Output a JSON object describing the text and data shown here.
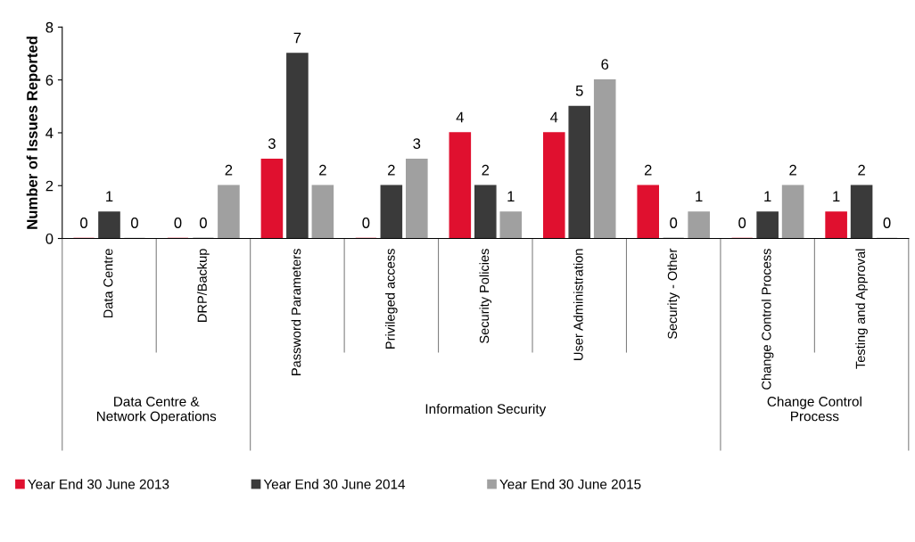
{
  "chart_data": {
    "type": "bar",
    "ylabel": "Number of Issues Reported",
    "categories": [
      "Data Centre",
      "DRP/Backup",
      "Password Parameters",
      "Privileged access",
      "Security Policies",
      "User Administration",
      "Security - Other",
      "Change Control Process",
      "Testing and Approval"
    ],
    "series": [
      {
        "name": "Year End 30 June 2013",
        "color": "#e0102f",
        "values": [
          0,
          0,
          3,
          0,
          4,
          4,
          2,
          0,
          1
        ]
      },
      {
        "name": "Year End 30 June 2014",
        "color": "#3a3a3a",
        "values": [
          1,
          0,
          7,
          2,
          2,
          5,
          0,
          1,
          2
        ]
      },
      {
        "name": "Year End 30 June 2015",
        "color": "#a0a0a0",
        "values": [
          0,
          2,
          2,
          3,
          1,
          6,
          1,
          2,
          0
        ]
      }
    ],
    "ylim": [
      0,
      8
    ],
    "yticks": [
      0,
      2,
      4,
      6,
      8
    ],
    "grid": false,
    "legend": "bottom",
    "data_labels": true,
    "annotations": [
      "Data Centre &\nNetwork Operations",
      "Information Security",
      "Change Control\nProcess"
    ]
  }
}
